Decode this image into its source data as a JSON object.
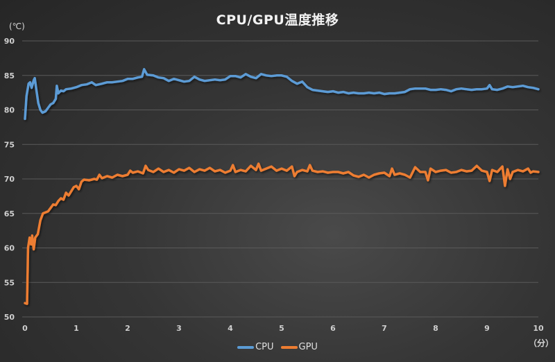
{
  "chart_data": {
    "type": "line",
    "title": "CPU/GPU温度推移",
    "xlabel": "（分）",
    "ylabel": "(℃)",
    "xlim": [
      0,
      10
    ],
    "ylim": [
      50,
      90
    ],
    "x_ticks": [
      0,
      1,
      2,
      3,
      4,
      5,
      6,
      7,
      8,
      9,
      10
    ],
    "y_ticks": [
      50,
      55,
      60,
      65,
      70,
      75,
      80,
      85,
      90
    ],
    "grid": "horizontal",
    "legend_position": "bottom",
    "series": [
      {
        "name": "CPU",
        "color": "#5b9bd5",
        "points": [
          [
            0.0,
            78.7
          ],
          [
            0.03,
            82.0
          ],
          [
            0.07,
            83.8
          ],
          [
            0.1,
            84.0
          ],
          [
            0.13,
            83.2
          ],
          [
            0.17,
            84.3
          ],
          [
            0.19,
            84.6
          ],
          [
            0.22,
            83.0
          ],
          [
            0.26,
            81.0
          ],
          [
            0.3,
            80.0
          ],
          [
            0.34,
            79.6
          ],
          [
            0.4,
            79.8
          ],
          [
            0.45,
            80.3
          ],
          [
            0.5,
            80.8
          ],
          [
            0.55,
            81.0
          ],
          [
            0.6,
            81.6
          ],
          [
            0.62,
            83.5
          ],
          [
            0.65,
            82.4
          ],
          [
            0.7,
            82.8
          ],
          [
            0.75,
            82.7
          ],
          [
            0.8,
            83.0
          ],
          [
            0.9,
            83.1
          ],
          [
            1.0,
            83.3
          ],
          [
            1.1,
            83.6
          ],
          [
            1.2,
            83.7
          ],
          [
            1.3,
            84.0
          ],
          [
            1.38,
            83.6
          ],
          [
            1.5,
            83.8
          ],
          [
            1.6,
            84.0
          ],
          [
            1.7,
            84.0
          ],
          [
            1.8,
            84.1
          ],
          [
            1.9,
            84.2
          ],
          [
            2.0,
            84.5
          ],
          [
            2.1,
            84.5
          ],
          [
            2.2,
            84.7
          ],
          [
            2.28,
            84.8
          ],
          [
            2.32,
            85.9
          ],
          [
            2.38,
            85.1
          ],
          [
            2.5,
            85.0
          ],
          [
            2.6,
            84.7
          ],
          [
            2.7,
            84.6
          ],
          [
            2.8,
            84.2
          ],
          [
            2.9,
            84.5
          ],
          [
            3.0,
            84.3
          ],
          [
            3.1,
            84.1
          ],
          [
            3.2,
            84.2
          ],
          [
            3.3,
            84.8
          ],
          [
            3.4,
            84.4
          ],
          [
            3.5,
            84.2
          ],
          [
            3.6,
            84.3
          ],
          [
            3.7,
            84.4
          ],
          [
            3.8,
            84.3
          ],
          [
            3.9,
            84.4
          ],
          [
            4.0,
            84.9
          ],
          [
            4.1,
            84.9
          ],
          [
            4.2,
            84.7
          ],
          [
            4.3,
            85.2
          ],
          [
            4.4,
            84.8
          ],
          [
            4.5,
            84.6
          ],
          [
            4.6,
            85.2
          ],
          [
            4.7,
            85.0
          ],
          [
            4.8,
            84.9
          ],
          [
            4.9,
            85.0
          ],
          [
            5.0,
            85.0
          ],
          [
            5.1,
            84.8
          ],
          [
            5.2,
            84.2
          ],
          [
            5.3,
            83.8
          ],
          [
            5.4,
            84.1
          ],
          [
            5.5,
            83.3
          ],
          [
            5.6,
            82.9
          ],
          [
            5.7,
            82.8
          ],
          [
            5.8,
            82.7
          ],
          [
            5.9,
            82.6
          ],
          [
            6.0,
            82.7
          ],
          [
            6.1,
            82.5
          ],
          [
            6.2,
            82.6
          ],
          [
            6.3,
            82.4
          ],
          [
            6.4,
            82.5
          ],
          [
            6.5,
            82.4
          ],
          [
            6.6,
            82.4
          ],
          [
            6.7,
            82.5
          ],
          [
            6.8,
            82.4
          ],
          [
            6.9,
            82.5
          ],
          [
            7.0,
            82.3
          ],
          [
            7.1,
            82.4
          ],
          [
            7.2,
            82.4
          ],
          [
            7.3,
            82.5
          ],
          [
            7.4,
            82.6
          ],
          [
            7.5,
            83.0
          ],
          [
            7.6,
            83.1
          ],
          [
            7.7,
            83.1
          ],
          [
            7.8,
            83.1
          ],
          [
            7.9,
            82.9
          ],
          [
            8.0,
            82.9
          ],
          [
            8.1,
            83.0
          ],
          [
            8.2,
            82.9
          ],
          [
            8.3,
            82.7
          ],
          [
            8.4,
            83.0
          ],
          [
            8.5,
            83.1
          ],
          [
            8.6,
            83.0
          ],
          [
            8.7,
            82.9
          ],
          [
            8.8,
            83.0
          ],
          [
            8.9,
            83.0
          ],
          [
            9.0,
            83.1
          ],
          [
            9.05,
            83.6
          ],
          [
            9.1,
            83.0
          ],
          [
            9.2,
            82.9
          ],
          [
            9.3,
            83.1
          ],
          [
            9.4,
            83.4
          ],
          [
            9.5,
            83.3
          ],
          [
            9.6,
            83.4
          ],
          [
            9.7,
            83.5
          ],
          [
            9.8,
            83.3
          ],
          [
            9.9,
            83.2
          ],
          [
            10.0,
            83.0
          ]
        ]
      },
      {
        "name": "GPU",
        "color": "#ed7d31",
        "points": [
          [
            0.0,
            52.0
          ],
          [
            0.04,
            51.9
          ],
          [
            0.06,
            60.0
          ],
          [
            0.09,
            61.5
          ],
          [
            0.12,
            60.5
          ],
          [
            0.14,
            61.8
          ],
          [
            0.17,
            59.8
          ],
          [
            0.2,
            61.5
          ],
          [
            0.25,
            62.0
          ],
          [
            0.3,
            64.0
          ],
          [
            0.35,
            65.0
          ],
          [
            0.45,
            65.3
          ],
          [
            0.5,
            65.8
          ],
          [
            0.55,
            66.3
          ],
          [
            0.6,
            66.2
          ],
          [
            0.65,
            66.8
          ],
          [
            0.7,
            67.2
          ],
          [
            0.75,
            67.0
          ],
          [
            0.8,
            68.0
          ],
          [
            0.85,
            67.6
          ],
          [
            0.9,
            68.2
          ],
          [
            0.95,
            68.8
          ],
          [
            1.0,
            69.0
          ],
          [
            1.05,
            68.5
          ],
          [
            1.1,
            69.6
          ],
          [
            1.15,
            69.9
          ],
          [
            1.25,
            69.8
          ],
          [
            1.35,
            70.0
          ],
          [
            1.4,
            69.9
          ],
          [
            1.45,
            70.6
          ],
          [
            1.5,
            70.1
          ],
          [
            1.6,
            70.4
          ],
          [
            1.7,
            70.2
          ],
          [
            1.8,
            70.6
          ],
          [
            1.9,
            70.4
          ],
          [
            2.0,
            70.6
          ],
          [
            2.05,
            71.2
          ],
          [
            2.1,
            70.9
          ],
          [
            2.2,
            71.1
          ],
          [
            2.3,
            70.8
          ],
          [
            2.35,
            71.9
          ],
          [
            2.4,
            71.3
          ],
          [
            2.5,
            71.0
          ],
          [
            2.6,
            71.5
          ],
          [
            2.7,
            71.0
          ],
          [
            2.8,
            71.3
          ],
          [
            2.9,
            70.9
          ],
          [
            3.0,
            71.4
          ],
          [
            3.1,
            71.2
          ],
          [
            3.2,
            71.6
          ],
          [
            3.3,
            71.0
          ],
          [
            3.4,
            71.4
          ],
          [
            3.5,
            71.2
          ],
          [
            3.6,
            71.6
          ],
          [
            3.7,
            71.1
          ],
          [
            3.8,
            71.3
          ],
          [
            3.9,
            70.9
          ],
          [
            4.0,
            71.2
          ],
          [
            4.05,
            72.0
          ],
          [
            4.1,
            71.0
          ],
          [
            4.2,
            71.3
          ],
          [
            4.3,
            71.1
          ],
          [
            4.4,
            71.9
          ],
          [
            4.5,
            71.3
          ],
          [
            4.55,
            72.2
          ],
          [
            4.6,
            71.2
          ],
          [
            4.7,
            71.5
          ],
          [
            4.8,
            71.8
          ],
          [
            4.9,
            71.2
          ],
          [
            5.0,
            71.5
          ],
          [
            5.1,
            71.2
          ],
          [
            5.2,
            71.8
          ],
          [
            5.25,
            70.4
          ],
          [
            5.3,
            71.0
          ],
          [
            5.4,
            71.3
          ],
          [
            5.5,
            71.1
          ],
          [
            5.55,
            72.0
          ],
          [
            5.6,
            71.2
          ],
          [
            5.7,
            71.0
          ],
          [
            5.8,
            71.1
          ],
          [
            5.9,
            70.9
          ],
          [
            6.0,
            71.0
          ],
          [
            6.1,
            71.0
          ],
          [
            6.2,
            70.8
          ],
          [
            6.3,
            71.0
          ],
          [
            6.4,
            70.5
          ],
          [
            6.5,
            70.3
          ],
          [
            6.6,
            70.6
          ],
          [
            6.7,
            70.2
          ],
          [
            6.8,
            70.6
          ],
          [
            6.9,
            70.8
          ],
          [
            7.0,
            70.9
          ],
          [
            7.1,
            70.4
          ],
          [
            7.15,
            71.5
          ],
          [
            7.2,
            70.6
          ],
          [
            7.3,
            70.8
          ],
          [
            7.4,
            70.6
          ],
          [
            7.5,
            70.2
          ],
          [
            7.6,
            71.7
          ],
          [
            7.7,
            71.0
          ],
          [
            7.8,
            71.0
          ],
          [
            7.85,
            69.8
          ],
          [
            7.9,
            71.5
          ],
          [
            8.0,
            71.0
          ],
          [
            8.1,
            71.2
          ],
          [
            8.2,
            71.3
          ],
          [
            8.3,
            70.9
          ],
          [
            8.4,
            71.0
          ],
          [
            8.5,
            71.3
          ],
          [
            8.6,
            71.1
          ],
          [
            8.7,
            71.2
          ],
          [
            8.8,
            71.9
          ],
          [
            8.9,
            71.2
          ],
          [
            9.0,
            71.0
          ],
          [
            9.05,
            69.7
          ],
          [
            9.1,
            71.3
          ],
          [
            9.2,
            71.0
          ],
          [
            9.3,
            71.8
          ],
          [
            9.35,
            69.0
          ],
          [
            9.4,
            71.4
          ],
          [
            9.45,
            70.0
          ],
          [
            9.5,
            71.0
          ],
          [
            9.6,
            71.3
          ],
          [
            9.7,
            71.1
          ],
          [
            9.8,
            71.5
          ],
          [
            9.85,
            70.9
          ],
          [
            9.9,
            71.1
          ],
          [
            10.0,
            71.0
          ]
        ]
      }
    ]
  },
  "header": {
    "title": "CPU/GPU温度推移"
  },
  "axes": {
    "y_unit": "(℃)",
    "x_unit": "（分）"
  },
  "legend": {
    "items": [
      {
        "label": "CPU",
        "color": "#5b9bd5"
      },
      {
        "label": "GPU",
        "color": "#ed7d31"
      }
    ]
  }
}
